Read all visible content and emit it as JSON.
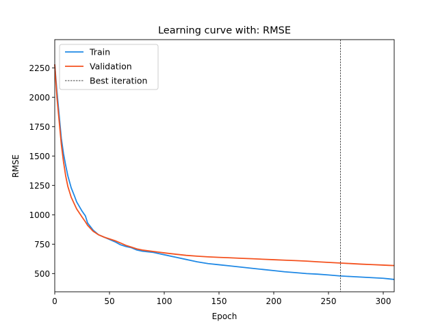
{
  "chart_data": {
    "type": "line",
    "title": "Learning curve with: RMSE",
    "xlabel": "Epoch",
    "ylabel": "RMSE",
    "xlim": [
      0,
      310
    ],
    "ylim": [
      345,
      2490
    ],
    "x_ticks": [
      0,
      50,
      100,
      150,
      200,
      250,
      300
    ],
    "y_ticks": [
      500,
      750,
      1000,
      1250,
      1500,
      1750,
      2000,
      2250
    ],
    "grid": false,
    "legend_position": "top-left",
    "best_iteration": 261,
    "series": [
      {
        "name": "Train",
        "color": "#1e88e5",
        "x": [
          0,
          2,
          4,
          6,
          8,
          10,
          12,
          15,
          18,
          20,
          25,
          28,
          30,
          35,
          40,
          45,
          50,
          55,
          60,
          65,
          70,
          75,
          80,
          90,
          95,
          100,
          110,
          120,
          130,
          140,
          150,
          160,
          170,
          180,
          190,
          200,
          210,
          220,
          230,
          240,
          250,
          260,
          270,
          280,
          290,
          300,
          305,
          310
        ],
        "y": [
          2280,
          2050,
          1850,
          1650,
          1520,
          1420,
          1330,
          1230,
          1160,
          1110,
          1030,
          990,
          930,
          870,
          830,
          810,
          790,
          770,
          745,
          730,
          720,
          700,
          690,
          680,
          670,
          660,
          640,
          620,
          600,
          585,
          575,
          565,
          555,
          545,
          535,
          525,
          515,
          508,
          500,
          495,
          488,
          480,
          475,
          470,
          465,
          460,
          455,
          450
        ]
      },
      {
        "name": "Validation",
        "color": "#f4511e",
        "x": [
          0,
          2,
          4,
          6,
          8,
          10,
          12,
          15,
          18,
          20,
          25,
          28,
          30,
          35,
          40,
          45,
          50,
          55,
          60,
          65,
          70,
          75,
          80,
          90,
          95,
          100,
          110,
          120,
          130,
          140,
          150,
          160,
          170,
          180,
          190,
          200,
          210,
          220,
          230,
          240,
          250,
          260,
          270,
          280,
          290,
          300,
          305,
          310
        ],
        "y": [
          2280,
          2000,
          1800,
          1600,
          1450,
          1330,
          1240,
          1150,
          1090,
          1050,
          980,
          940,
          910,
          860,
          830,
          810,
          795,
          780,
          760,
          740,
          725,
          710,
          700,
          688,
          682,
          676,
          665,
          655,
          648,
          642,
          638,
          634,
          630,
          626,
          622,
          618,
          614,
          610,
          606,
          600,
          595,
          590,
          585,
          580,
          576,
          572,
          570,
          568
        ]
      },
      {
        "name": "Best iteration",
        "color": "#000000"
      }
    ]
  }
}
